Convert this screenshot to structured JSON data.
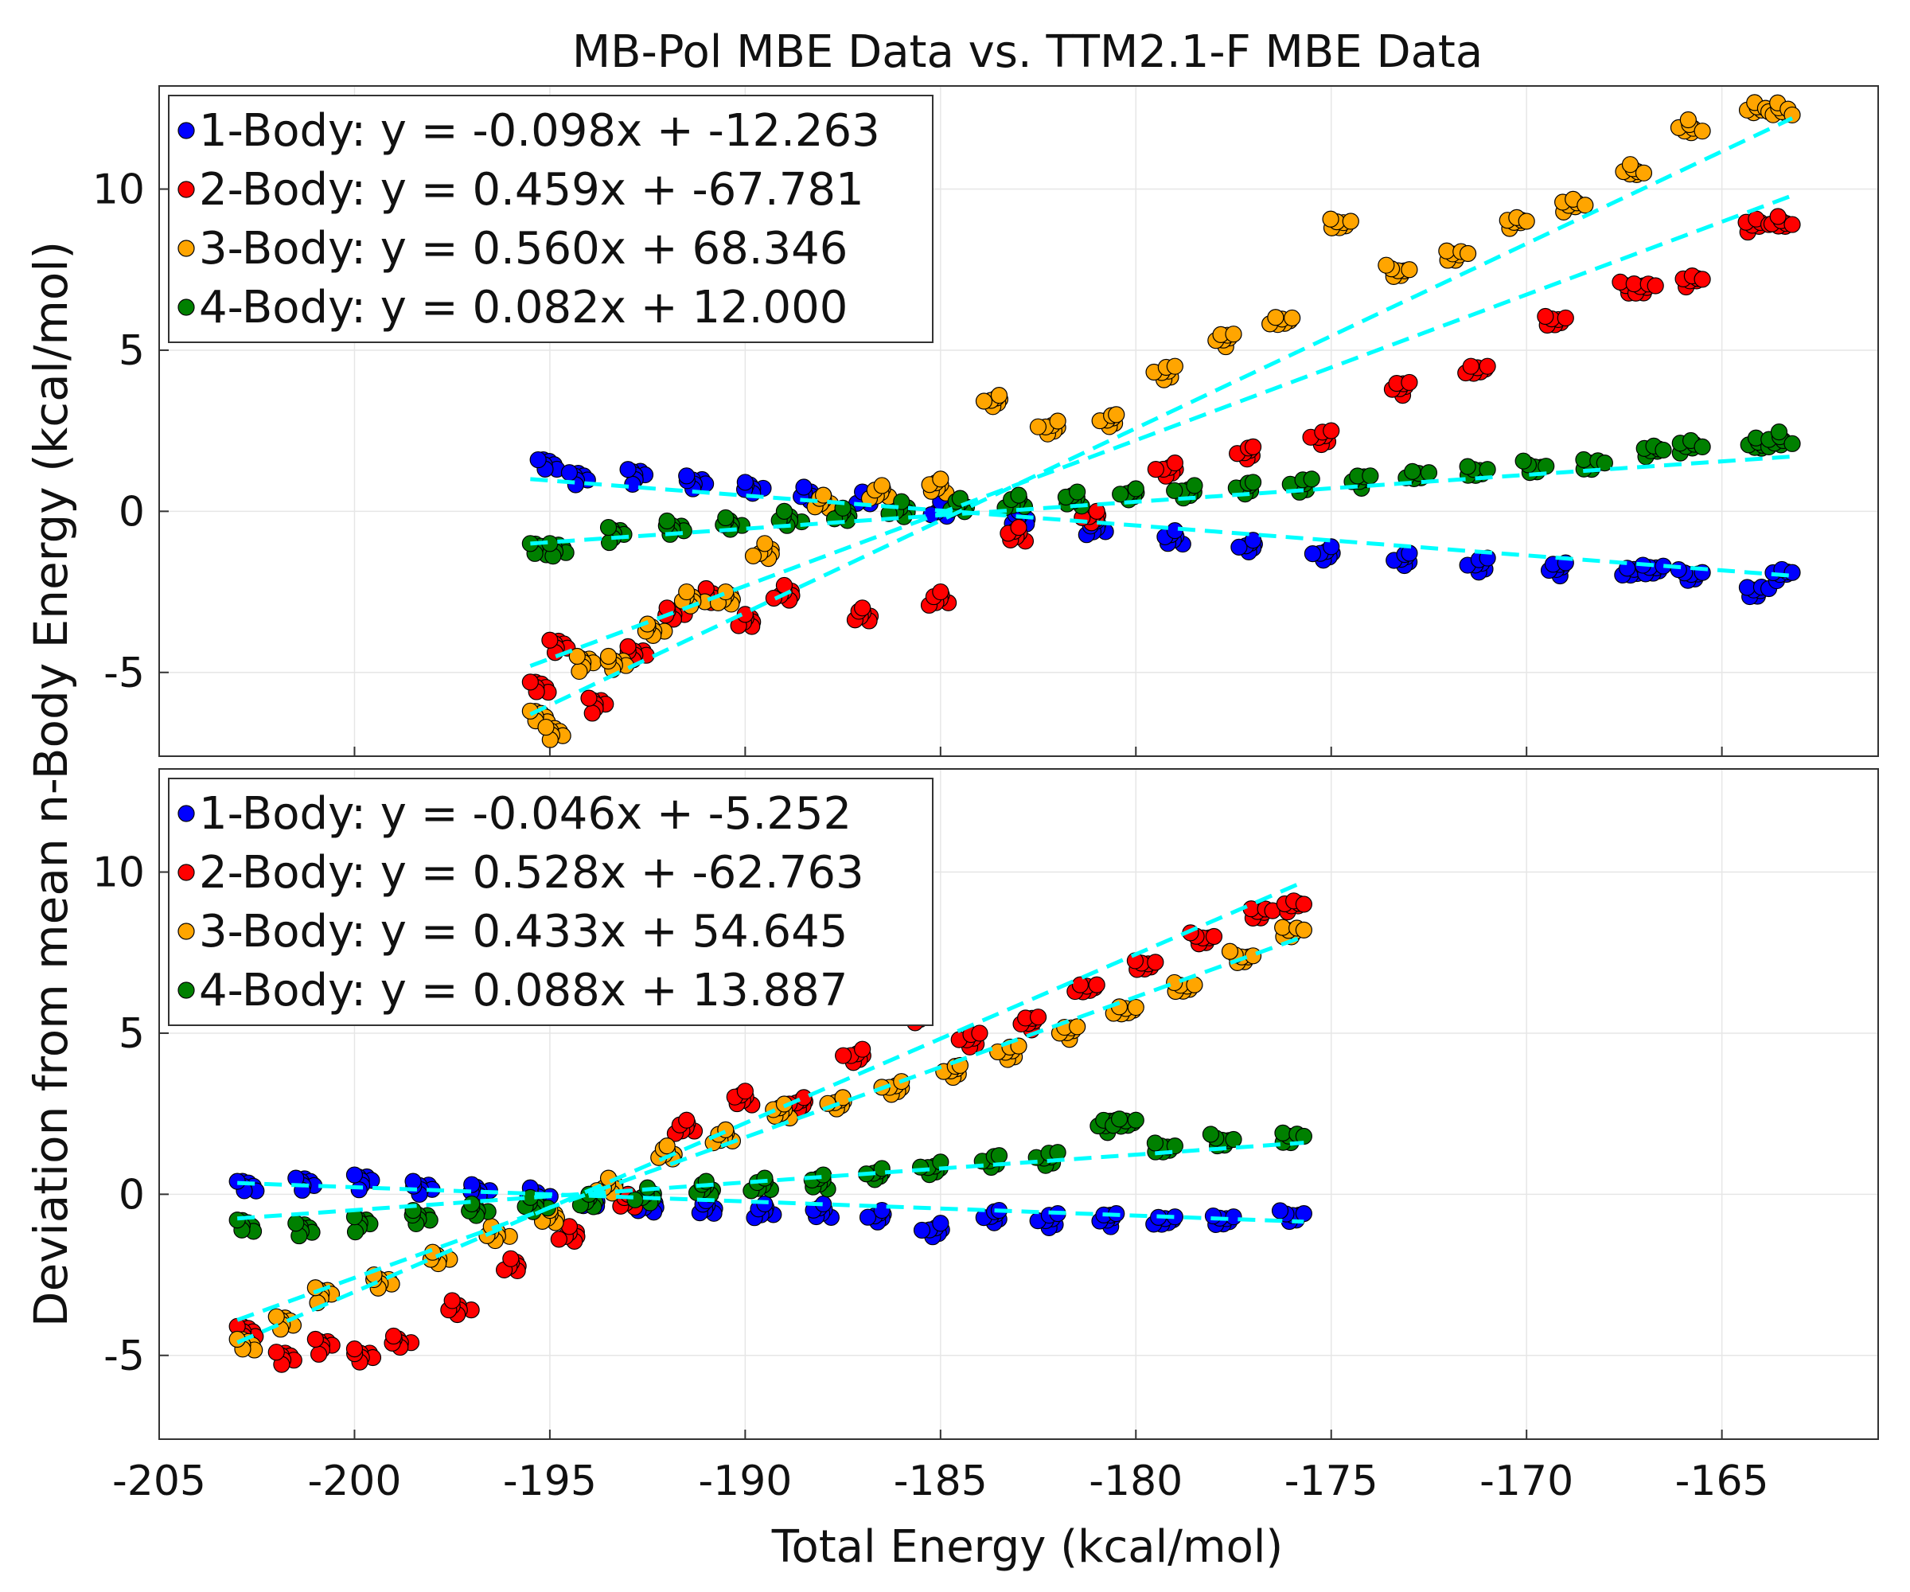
{
  "figure": {
    "title": "MB-Pol MBE Data vs. TTM2.1-F MBE Data",
    "xlabel": "Total Energy (kcal/mol)",
    "ylabel": "Deviation from mean n-Body Energy (kcal/mol)"
  },
  "colors": {
    "1-Body": "#0000ff",
    "2-Body": "#ff0000",
    "3-Body": "#ffa500",
    "4-Body": "#008000",
    "fit": "#00ffff"
  },
  "chart_data": [
    {
      "type": "scatter",
      "title": "",
      "xlabel": "",
      "ylabel": "",
      "xlim": [
        -205,
        -161
      ],
      "ylim": [
        -7.6,
        13.2
      ],
      "x_ticks": [
        -205,
        -200,
        -195,
        -190,
        -185,
        -180,
        -175,
        -170,
        -165
      ],
      "y_ticks": [
        -5,
        0,
        5,
        10
      ],
      "grid": true,
      "legend_position": "top-left",
      "series": [
        {
          "name": "1-Body: y = -0.098x + -12.263",
          "color_key": "1-Body",
          "x": [
            -195.3,
            -194.5,
            -193,
            -191.5,
            -190,
            -188.5,
            -187,
            -185,
            -183,
            -181,
            -179,
            -177,
            -175,
            -173,
            -171,
            -169,
            -167,
            -166.5,
            -165.5,
            -163.8,
            -163.2
          ],
          "y": [
            1.6,
            1.2,
            1.3,
            1.1,
            0.9,
            0.75,
            0.6,
            0.3,
            0.0,
            -0.3,
            -0.6,
            -0.9,
            -1.1,
            -1.3,
            -1.45,
            -1.6,
            -1.75,
            -1.7,
            -1.9,
            -2.4,
            -1.9
          ],
          "fit_x": [
            -195.5,
            -163.2
          ],
          "fit_y": [
            1.0,
            -2.0
          ]
        },
        {
          "name": "2-Body: y = 0.459x + -67.781",
          "color_key": "2-Body",
          "x": [
            -195.5,
            -195.0,
            -194.0,
            -193.0,
            -192.0,
            -191.0,
            -190.0,
            -189.0,
            -187.0,
            -185.0,
            -183.0,
            -181.0,
            -179.0,
            -177.0,
            -175.0,
            -173.0,
            -171.0,
            -169.0,
            -167.0,
            -166.7,
            -165.5,
            -163.8,
            -163.2
          ],
          "y": [
            -5.3,
            -4.0,
            -5.8,
            -4.2,
            -3.0,
            -2.4,
            -3.2,
            -2.3,
            -3.0,
            -2.5,
            -0.5,
            0.0,
            1.5,
            2.0,
            2.5,
            4.0,
            4.5,
            6.0,
            7.0,
            7.0,
            7.2,
            8.9,
            8.9
          ],
          "fit_x": [
            -195.5,
            -163.2
          ],
          "fit_y": [
            -4.8,
            9.8
          ]
        },
        {
          "name": "3-Body: y = 0.560x + 68.346",
          "color_key": "3-Body",
          "x": [
            -195.5,
            -195.1,
            -194.3,
            -193.5,
            -192.5,
            -191.5,
            -190.5,
            -189.5,
            -188.0,
            -186.5,
            -185.0,
            -183.5,
            -182.0,
            -180.5,
            -179.0,
            -177.5,
            -176.0,
            -174.5,
            -173.0,
            -171.5,
            -170.0,
            -168.5,
            -167.0,
            -165.5,
            -163.8,
            -163.2
          ],
          "y": [
            -6.2,
            -6.7,
            -4.5,
            -4.5,
            -3.5,
            -2.5,
            -2.5,
            -1.0,
            0.5,
            0.8,
            1.0,
            3.6,
            2.8,
            3.0,
            4.5,
            5.5,
            6.0,
            9.0,
            7.5,
            8.0,
            9.0,
            9.5,
            10.5,
            11.8,
            12.4,
            12.3
          ],
          "fit_x": [
            -195.5,
            -163.2
          ],
          "fit_y": [
            -6.3,
            12.2
          ]
        },
        {
          "name": "4-Body: y = 0.082x + 12.000",
          "color_key": "4-Body",
          "x": [
            -195.5,
            -195.0,
            -193.5,
            -192.0,
            -190.5,
            -189.0,
            -187.5,
            -186.0,
            -184.5,
            -183.0,
            -181.5,
            -180.0,
            -178.5,
            -177.0,
            -175.5,
            -174.0,
            -172.5,
            -171.0,
            -169.5,
            -168.0,
            -166.5,
            -165.5,
            -163.8,
            -163.2
          ],
          "y": [
            -1.0,
            -1.0,
            -0.5,
            -0.3,
            -0.2,
            0.0,
            0.1,
            0.3,
            0.4,
            0.5,
            0.6,
            0.7,
            0.8,
            0.9,
            1.0,
            1.1,
            1.2,
            1.3,
            1.4,
            1.5,
            1.9,
            2.0,
            2.0,
            2.1
          ],
          "fit_x": [
            -195.5,
            -163.2
          ],
          "fit_y": [
            -1.0,
            1.7
          ]
        }
      ]
    },
    {
      "type": "scatter",
      "title": "",
      "xlabel": "",
      "ylabel": "",
      "xlim": [
        -205,
        -161
      ],
      "ylim": [
        -7.6,
        13.2
      ],
      "x_ticks": [
        -205,
        -200,
        -195,
        -190,
        -185,
        -180,
        -175,
        -170,
        -165
      ],
      "y_ticks": [
        -5,
        0,
        5,
        10
      ],
      "grid": true,
      "legend_position": "top-left",
      "series": [
        {
          "name": "1-Body: y = -0.046x + -5.252",
          "color_key": "1-Body",
          "x": [
            -203.0,
            -201.5,
            -200.0,
            -198.5,
            -197.0,
            -195.5,
            -194.0,
            -192.5,
            -191.0,
            -189.5,
            -188.0,
            -186.5,
            -185.0,
            -183.5,
            -182.0,
            -180.5,
            -179.0,
            -177.5,
            -175.7
          ],
          "y": [
            0.4,
            0.5,
            0.6,
            0.4,
            0.3,
            0.2,
            0.0,
            -0.1,
            -0.2,
            -0.3,
            -0.3,
            -0.5,
            -0.9,
            -0.5,
            -0.6,
            -0.6,
            -0.7,
            -0.7,
            -0.6
          ],
          "fit_x": [
            -203.0,
            -175.7
          ],
          "fit_y": [
            0.35,
            -0.85
          ]
        },
        {
          "name": "2-Body: y = 0.528x + -62.763",
          "color_key": "2-Body",
          "x": [
            -203.0,
            -202.0,
            -201.0,
            -200.0,
            -199.0,
            -197.5,
            -196.0,
            -194.5,
            -193.0,
            -191.5,
            -190.0,
            -188.5,
            -187.0,
            -185.5,
            -184.0,
            -182.5,
            -181.0,
            -179.5,
            -178.0,
            -176.5,
            -175.7
          ],
          "y": [
            -4.1,
            -4.9,
            -4.5,
            -4.8,
            -4.4,
            -3.3,
            -2.0,
            -1.0,
            0.0,
            2.3,
            3.2,
            3.0,
            4.5,
            5.7,
            5.0,
            5.5,
            6.5,
            7.2,
            8.0,
            8.8,
            9.0
          ],
          "fit_x": [
            -203.0,
            -175.7
          ],
          "fit_y": [
            -4.6,
            9.7
          ]
        },
        {
          "name": "3-Body: y = 0.433x + 54.645",
          "color_key": "3-Body",
          "x": [
            -203.0,
            -202.0,
            -201.0,
            -199.5,
            -198.0,
            -196.5,
            -195.0,
            -193.5,
            -192.0,
            -190.5,
            -189.0,
            -187.5,
            -186.0,
            -184.5,
            -183.0,
            -181.5,
            -180.0,
            -178.5,
            -177.0,
            -175.7
          ],
          "y": [
            -4.5,
            -3.8,
            -2.9,
            -2.5,
            -1.8,
            -1.0,
            -0.5,
            0.5,
            1.5,
            2.0,
            2.8,
            3.0,
            3.5,
            4.0,
            4.6,
            5.2,
            5.8,
            6.5,
            7.4,
            8.2
          ],
          "fit_x": [
            -203.0,
            -175.7
          ],
          "fit_y": [
            -3.9,
            8.0
          ]
        },
        {
          "name": "4-Body: y = 0.088x + 13.887",
          "color_key": "4-Body",
          "x": [
            -203.0,
            -201.5,
            -200.0,
            -198.5,
            -197.0,
            -195.5,
            -194.0,
            -192.5,
            -191.0,
            -189.5,
            -188.0,
            -186.5,
            -185.0,
            -183.5,
            -182.0,
            -180.5,
            -180.0,
            -179.0,
            -177.5,
            -175.7
          ],
          "y": [
            -0.8,
            -0.9,
            -0.7,
            -0.5,
            -0.3,
            -0.1,
            0.0,
            0.2,
            0.4,
            0.5,
            0.6,
            0.8,
            1.0,
            1.2,
            1.3,
            2.3,
            2.3,
            1.5,
            1.7,
            1.8
          ],
          "fit_x": [
            -203.0,
            -175.7
          ],
          "fit_y": [
            -0.75,
            1.6
          ]
        }
      ]
    }
  ]
}
